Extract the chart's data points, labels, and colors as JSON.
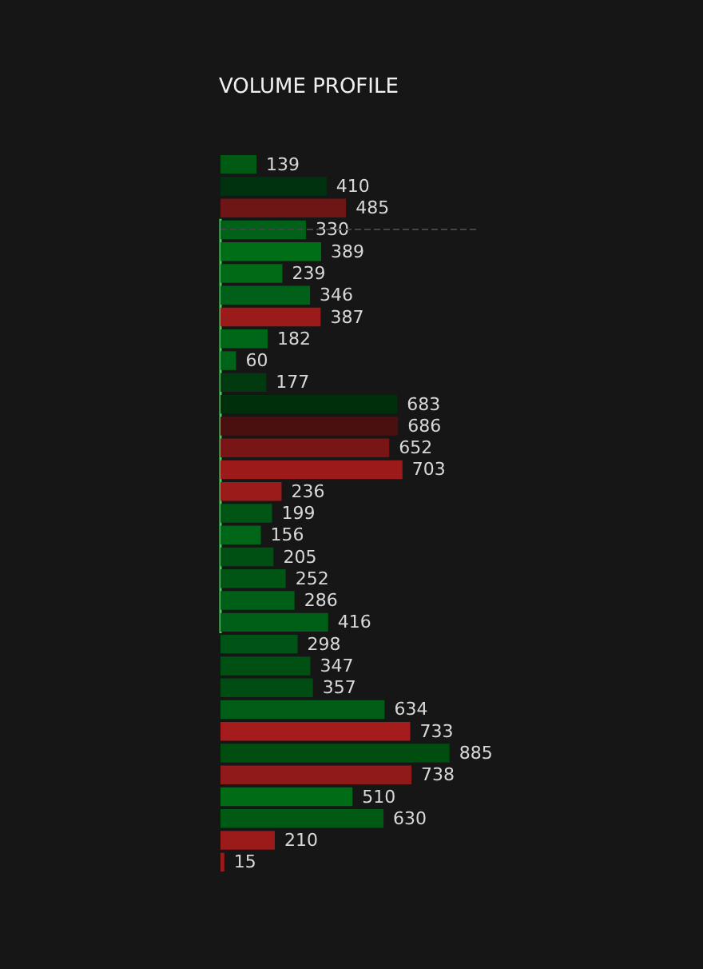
{
  "chart_data": {
    "type": "bar",
    "title": "VOLUME PROFILE",
    "orientation": "horizontal",
    "data_labels": true,
    "categories": [
      null,
      null,
      null,
      null,
      null,
      null,
      null,
      null,
      null,
      null,
      null,
      null,
      null,
      null,
      null,
      null,
      null,
      null,
      null,
      null,
      null,
      null,
      null,
      null,
      null,
      null,
      null,
      null,
      null,
      null,
      null,
      null,
      null
    ],
    "values": [
      139,
      410,
      485,
      330,
      389,
      239,
      346,
      387,
      182,
      60,
      177,
      683,
      686,
      652,
      703,
      236,
      199,
      156,
      205,
      252,
      286,
      416,
      298,
      347,
      357,
      634,
      733,
      885,
      738,
      510,
      630,
      210,
      15
    ],
    "colors": [
      "#005a14",
      "#003210",
      "#6e1515",
      "#006218",
      "#006e16",
      "#006a17",
      "#005f18",
      "#9b1a1a",
      "#006618",
      "#006418",
      "#003a0e",
      "#002f0c",
      "#4a1010",
      "#7a1515",
      "#9c1a1a",
      "#9b1a1a",
      "#005514",
      "#006618",
      "#005014",
      "#005414",
      "#005f16",
      "#005f16",
      "#005316",
      "#005014",
      "#004d13",
      "#005e16",
      "#a51c1c",
      "#004d10",
      "#8f1a1a",
      "#006c16",
      "#005a14",
      "#9b1a1a",
      "#9b1a1a"
    ]
  }
}
